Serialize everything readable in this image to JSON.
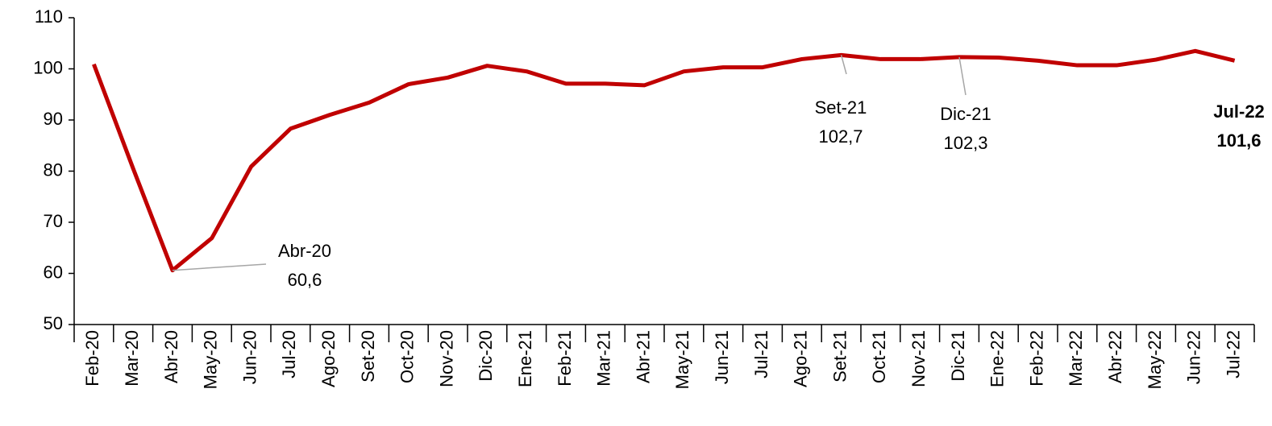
{
  "chart_data": {
    "type": "line",
    "categories": [
      "Feb-20",
      "Mar-20",
      "Abr-20",
      "May-20",
      "Jun-20",
      "Jul-20",
      "Ago-20",
      "Set-20",
      "Oct-20",
      "Nov-20",
      "Dic-20",
      "Ene-21",
      "Feb-21",
      "Mar-21",
      "Abr-21",
      "May-21",
      "Jun-21",
      "Jul-21",
      "Ago-21",
      "Set-21",
      "Oct-21",
      "Nov-21",
      "Dic-21",
      "Ene-22",
      "Feb-22",
      "Mar-22",
      "Abr-22",
      "May-22",
      "Jun-22",
      "Jul-22"
    ],
    "series": [
      {
        "color": "#c00000",
        "values": [
          100.9,
          80.5,
          60.6,
          66.9,
          80.9,
          88.3,
          91.0,
          93.4,
          97.0,
          98.3,
          100.6,
          99.5,
          97.1,
          97.1,
          96.8,
          99.5,
          100.3,
          100.3,
          101.9,
          102.7,
          101.9,
          101.9,
          102.3,
          102.2,
          101.6,
          100.7,
          100.7,
          101.8,
          103.5,
          101.6
        ],
        "value_labels": [
          null,
          null,
          "60,6",
          null,
          null,
          null,
          null,
          null,
          null,
          null,
          null,
          null,
          null,
          null,
          null,
          null,
          null,
          null,
          null,
          "102,7",
          null,
          null,
          "102,3",
          null,
          null,
          null,
          null,
          null,
          null,
          "101,6"
        ]
      }
    ],
    "ylim": [
      50,
      110
    ],
    "yticks": [
      50,
      60,
      70,
      80,
      90,
      100,
      110
    ],
    "grid": false
  }
}
